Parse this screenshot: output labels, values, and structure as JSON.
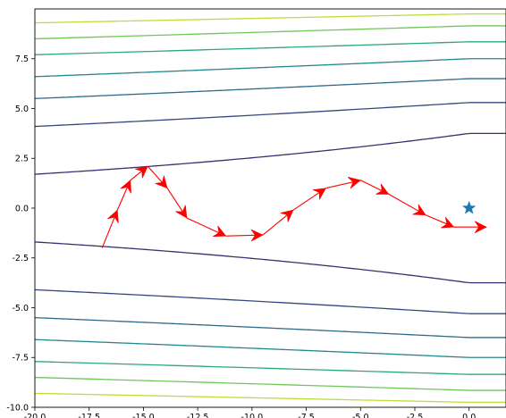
{
  "chart_data": {
    "type": "line",
    "title": "",
    "xlabel": "",
    "ylabel": "",
    "xlim": [
      -20,
      1.7
    ],
    "ylim": [
      -10,
      10
    ],
    "x_ticks": [
      "-20.0",
      "-17.5",
      "-15.0",
      "-12.5",
      "-10.0",
      "-7.5",
      "-5.0",
      "-2.5",
      "0.0"
    ],
    "y_ticks": [
      "-10.0",
      "-7.5",
      "-5.0",
      "-2.5",
      "0.0",
      "2.5",
      "5.0",
      "7.5"
    ],
    "grid": false,
    "legend": "none",
    "contours": {
      "levels_y_at_x0": [
        3.75,
        5.3,
        6.5,
        7.5,
        8.35,
        9.15,
        9.75
      ],
      "edge_y_at_x_min": [
        1.7,
        4.1,
        5.5,
        6.6,
        7.7,
        8.5,
        9.3
      ],
      "colors": [
        "#3b2f6e",
        "#35477f",
        "#2e6a89",
        "#24878d",
        "#2aa680",
        "#6fc75b",
        "#bedd3b"
      ]
    },
    "optimizer_path": {
      "color": "#ff0000",
      "points": [
        [
          -16.9,
          -2.0
        ],
        [
          -16.2,
          -0.1
        ],
        [
          -15.6,
          1.4
        ],
        [
          -14.8,
          2.1
        ],
        [
          -13.9,
          1.0
        ],
        [
          -13.0,
          -0.5
        ],
        [
          -11.2,
          -1.4
        ],
        [
          -9.5,
          -1.35
        ],
        [
          -8.1,
          -0.1
        ],
        [
          -6.6,
          1.0
        ],
        [
          -5.0,
          1.4
        ],
        [
          -3.7,
          0.7
        ],
        [
          -2.0,
          -0.35
        ],
        [
          -0.7,
          -0.95
        ],
        [
          0.8,
          -0.95
        ]
      ]
    },
    "optimum": {
      "x": 0,
      "y": 0,
      "marker": "star",
      "color": "#1f77b4"
    }
  }
}
